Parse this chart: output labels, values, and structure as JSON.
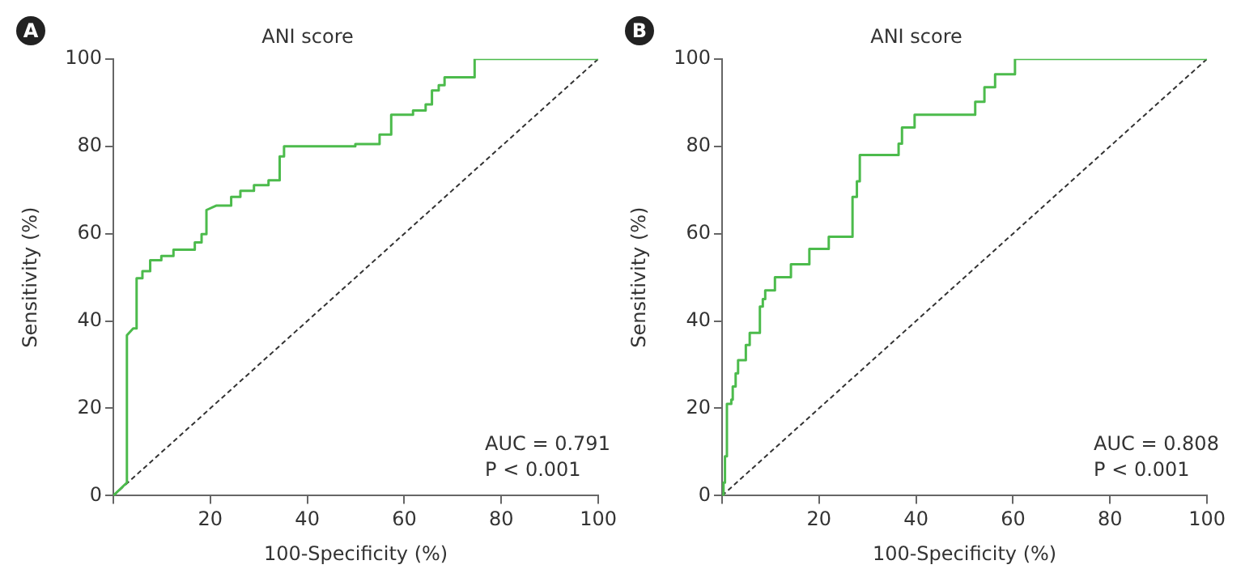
{
  "chart_data": [
    {
      "type": "line",
      "title": "ANI score",
      "xlabel": "100-Specificity (%)",
      "ylabel": "Sensitivity (%)",
      "xlim": [
        0,
        100
      ],
      "ylim": [
        0,
        100
      ],
      "xticks": [
        {
          "value": 0,
          "label": null
        },
        20,
        40,
        60,
        80,
        100
      ],
      "yticks": [
        0,
        20,
        40,
        60,
        80,
        100
      ],
      "marker": "none",
      "annotations": [
        "A",
        "AUC = 0.791",
        "P < 0.001"
      ],
      "series": [
        {
          "color": "#4cbb4c",
          "line_style": "solid",
          "x": [
            0,
            2.8,
            2.8,
            4.1,
            4.8,
            4.8,
            6.0,
            6.0,
            7.6,
            7.6,
            9.9,
            9.9,
            12.4,
            12.4,
            16.8,
            16.8,
            18.2,
            18.2,
            19.2,
            19.2,
            21.2,
            24.3,
            24.3,
            26.2,
            26.2,
            29,
            29,
            32,
            32,
            34.3,
            34.3,
            35.2,
            35.2,
            49.9,
            49.9,
            54.9,
            54.9,
            57.3,
            57.3,
            61.8,
            61.8,
            64.4,
            64.4,
            65.7,
            65.7,
            67.1,
            67.1,
            68.3,
            68.3,
            74.5,
            74.5,
            100
          ],
          "values": [
            0,
            3,
            36.7,
            38.3,
            38.3,
            49.8,
            49.8,
            51.4,
            51.4,
            53.9,
            53.9,
            54.9,
            54.9,
            56.3,
            56.3,
            58,
            58,
            59.9,
            59.9,
            65.4,
            66.4,
            66.4,
            68.4,
            68.4,
            69.8,
            69.8,
            71.1,
            71.1,
            72.2,
            72.2,
            77.7,
            77.7,
            80,
            80,
            80.5,
            80.5,
            82.7,
            82.7,
            87.2,
            87.2,
            88.2,
            88.2,
            89.6,
            89.6,
            92.8,
            92.8,
            94,
            94,
            95.8,
            95.8,
            100,
            100
          ]
        },
        {
          "color": "#333333",
          "line_style": "dashed",
          "x": [
            0,
            100
          ],
          "values": [
            0,
            100
          ]
        }
      ]
    },
    {
      "type": "line",
      "title": "ANI score",
      "xlabel": "100-Specificity (%)",
      "ylabel": "Sensitivity (%)",
      "xlim": [
        0,
        100
      ],
      "ylim": [
        0,
        100
      ],
      "xticks": [
        {
          "value": 0,
          "label": null
        },
        20,
        40,
        60,
        80,
        100
      ],
      "yticks": [
        0,
        20,
        40,
        60,
        80,
        100
      ],
      "marker": "none",
      "annotations": [
        "B",
        "AUC = 0.808",
        "P < 0.001"
      ],
      "series": [
        {
          "color": "#4cbb4c",
          "line_style": "solid",
          "x": [
            0,
            0.3,
            0.3,
            0.6,
            0.6,
            1,
            1,
            1.9,
            1.9,
            2.2,
            2.2,
            2.8,
            2.8,
            3.3,
            3.3,
            4.9,
            4.9,
            5.7,
            5.7,
            7.8,
            7.8,
            8.4,
            8.4,
            8.9,
            8.9,
            10.9,
            10.9,
            14.2,
            14.2,
            18,
            18,
            22,
            22,
            26.9,
            26.9,
            27.8,
            27.8,
            28.4,
            28.4,
            36.4,
            36.4,
            37.1,
            37.1,
            39.7,
            39.7,
            52.2,
            52.2,
            54.1,
            54.1,
            56.3,
            56.3,
            60.4,
            60.4,
            100
          ],
          "values": [
            0,
            0,
            3,
            3,
            9,
            9,
            21,
            21,
            22,
            22,
            25,
            25,
            28,
            28,
            31,
            31,
            34.5,
            34.5,
            37.3,
            37.3,
            43.3,
            43.3,
            45,
            45,
            47,
            47,
            50,
            50,
            53,
            53,
            56.5,
            56.5,
            59.3,
            59.3,
            68.4,
            68.4,
            72,
            72,
            78,
            78,
            80.6,
            80.6,
            84.3,
            84.3,
            87.2,
            87.2,
            90.2,
            90.2,
            93.5,
            93.5,
            96.5,
            96.5,
            100,
            100
          ]
        },
        {
          "color": "#333333",
          "line_style": "dashed",
          "x": [
            0,
            100
          ],
          "values": [
            0,
            100
          ]
        }
      ]
    }
  ]
}
